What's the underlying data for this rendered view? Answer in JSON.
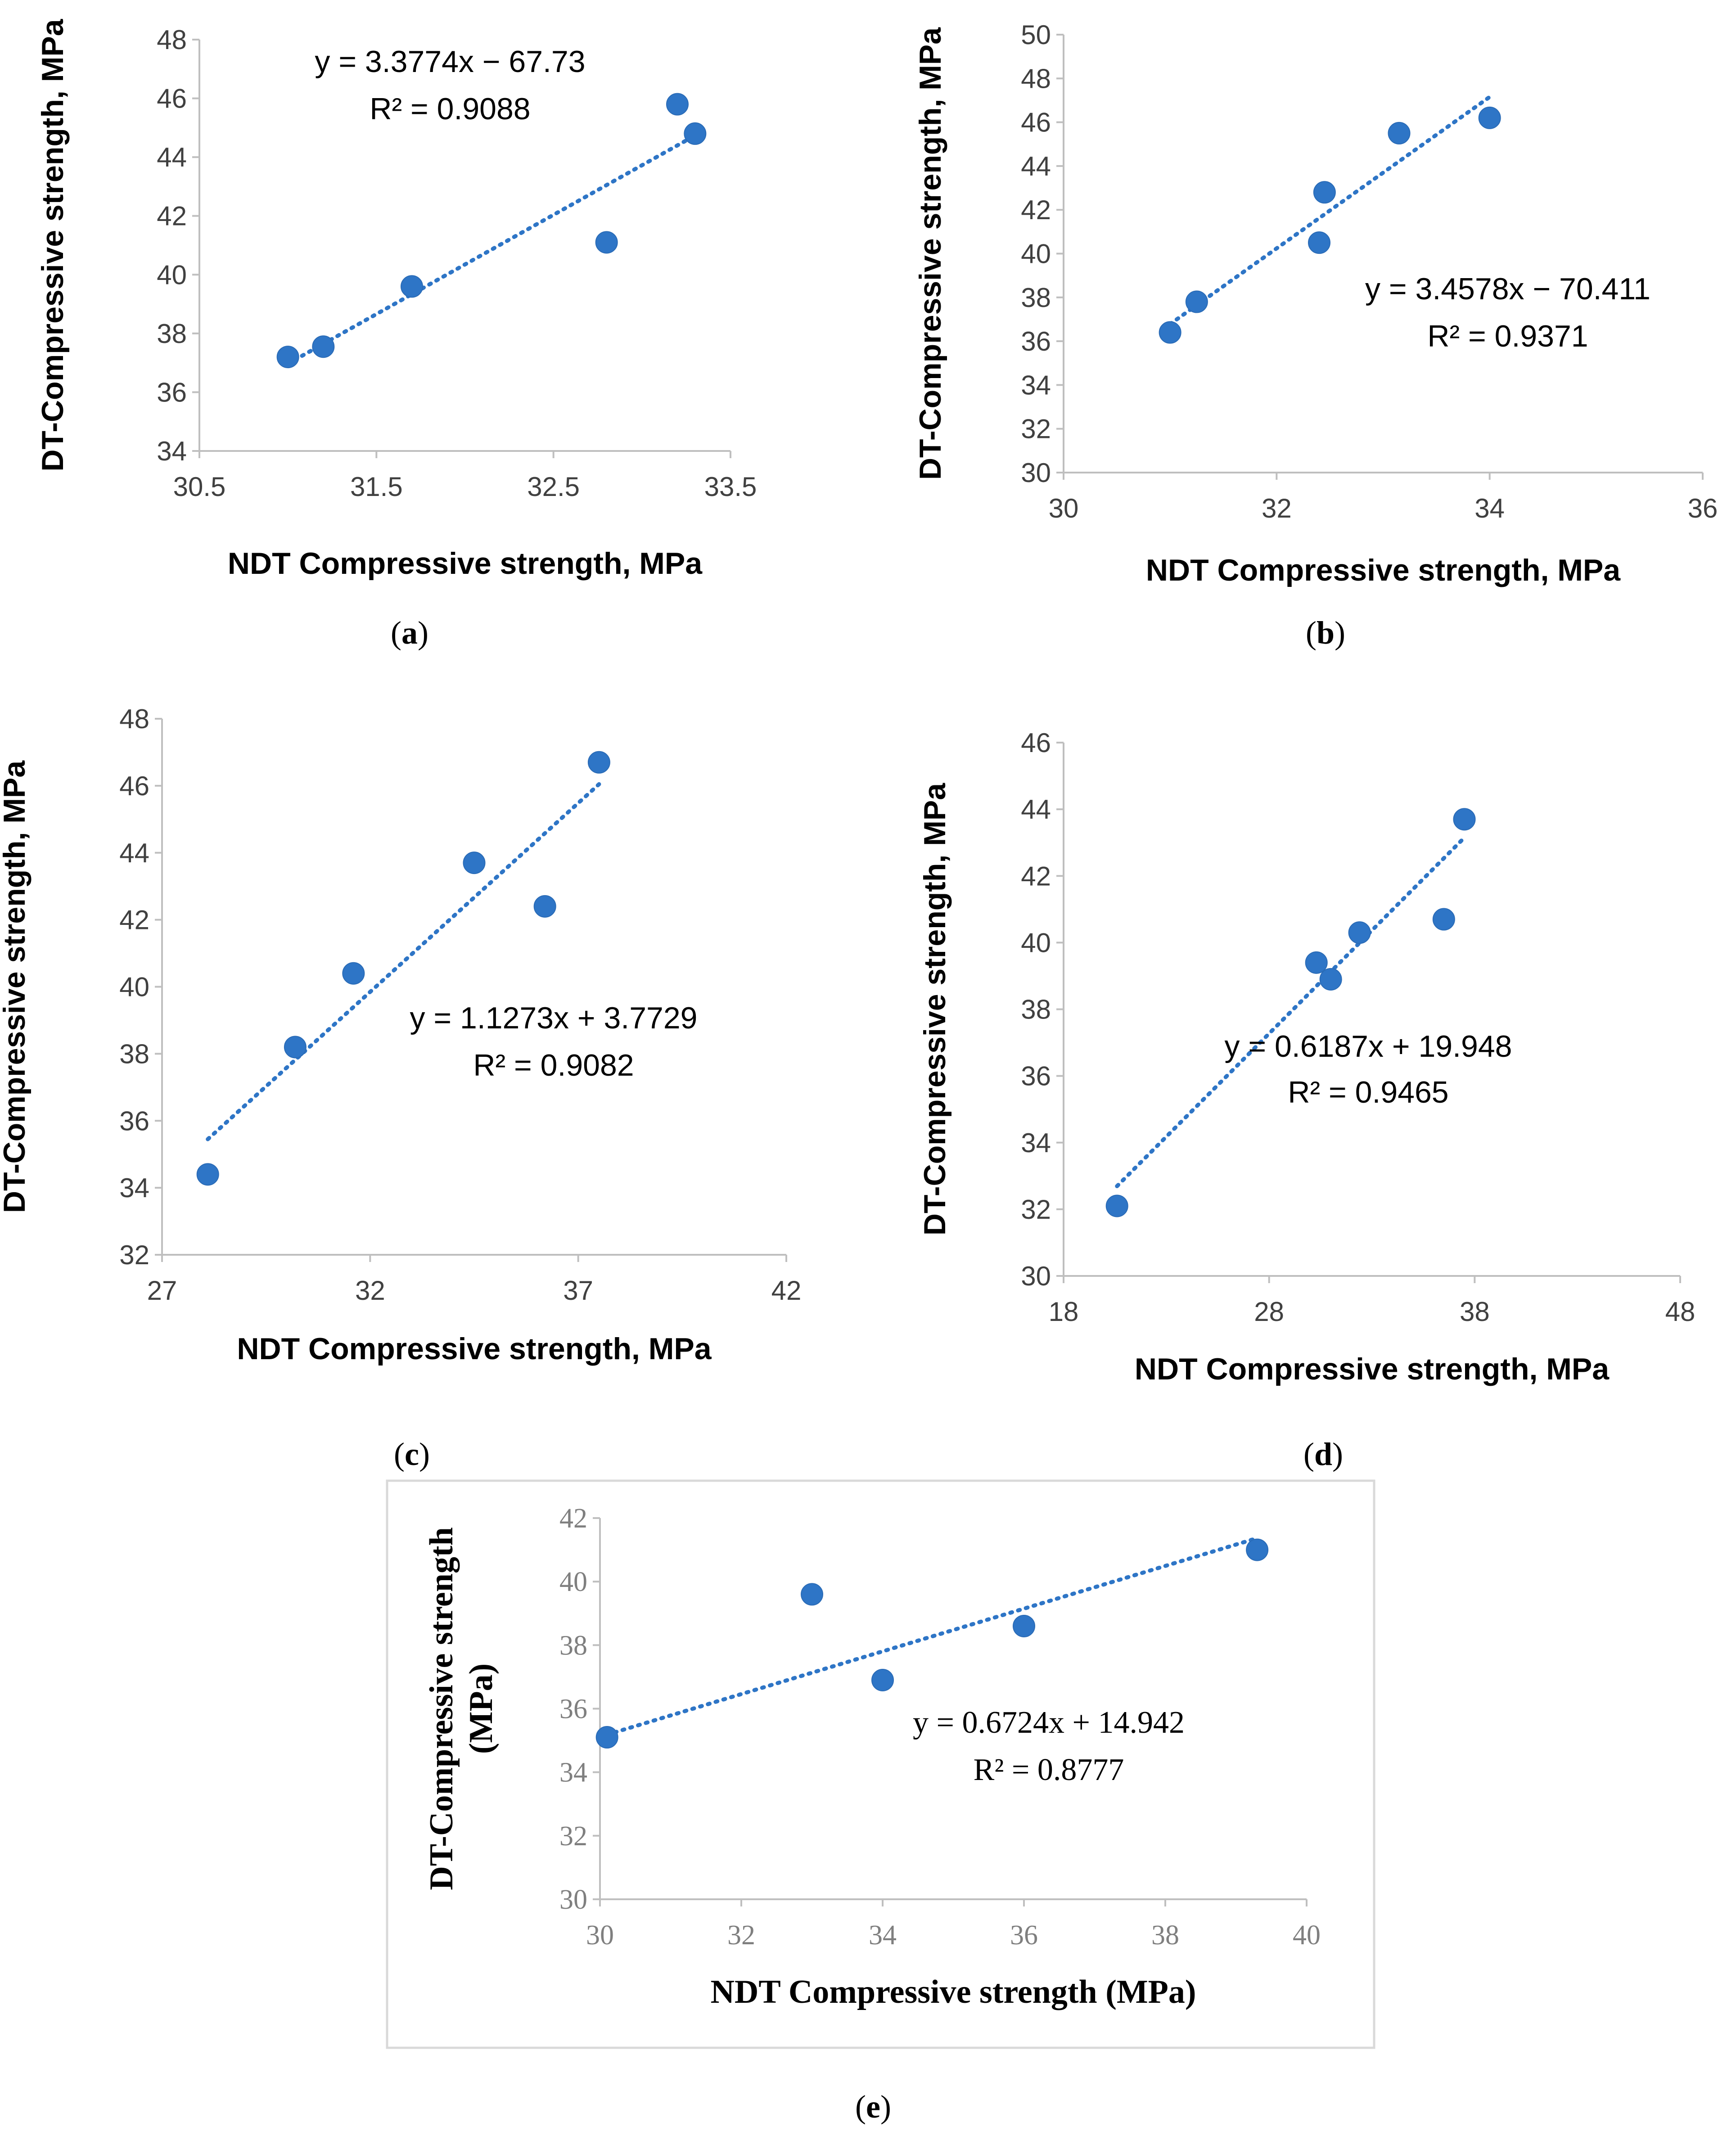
{
  "chart_data": [
    {
      "type": "scatter",
      "panel_label": "a",
      "xlabel": "NDT Compressive strength, MPa",
      "ylabel": "DT-Compressive strength, MPa",
      "xlim": [
        30.5,
        33.5
      ],
      "ylim": [
        34,
        48
      ],
      "xticks": [
        30.5,
        31.5,
        32.5,
        33.5
      ],
      "xtick_labels": [
        "30.5",
        "31.5",
        "32.5",
        "33.5"
      ],
      "yticks": [
        34,
        36,
        38,
        40,
        42,
        44,
        46,
        48
      ],
      "ytick_labels": [
        "34",
        "36",
        "38",
        "40",
        "42",
        "44",
        "46",
        "48"
      ],
      "x": [
        31.0,
        31.2,
        31.7,
        32.8,
        33.2,
        33.3
      ],
      "y": [
        37.2,
        37.55,
        39.6,
        41.1,
        45.8,
        44.8
      ],
      "trendline": {
        "slope": 3.3774,
        "intercept": -67.73,
        "x_range": [
          31.0,
          33.3
        ]
      },
      "equation": "y = 3.3774x − 67.73",
      "r_squared": "R² = 0.9088",
      "grid": false
    },
    {
      "type": "scatter",
      "panel_label": "b",
      "xlabel": "NDT Compressive strength, MPa",
      "ylabel": "DT-Compressive strength, MPa",
      "xlim": [
        30,
        36
      ],
      "ylim": [
        30,
        50
      ],
      "xticks": [
        30,
        32,
        34,
        36
      ],
      "xtick_labels": [
        "30",
        "32",
        "34",
        "36"
      ],
      "yticks": [
        30,
        32,
        34,
        36,
        38,
        40,
        42,
        44,
        46,
        48,
        50
      ],
      "ytick_labels": [
        "30",
        "32",
        "34",
        "36",
        "38",
        "40",
        "42",
        "44",
        "46",
        "48",
        "50"
      ],
      "x": [
        31.0,
        31.25,
        32.4,
        32.45,
        33.15,
        34.0
      ],
      "y": [
        36.4,
        37.8,
        40.5,
        42.8,
        45.5,
        46.2
      ],
      "trendline": {
        "slope": 3.4578,
        "intercept": -70.411,
        "x_range": [
          31.0,
          34.0
        ]
      },
      "equation": "y = 3.4578x − 70.411",
      "r_squared": "R² = 0.9371",
      "grid": false
    },
    {
      "type": "scatter",
      "panel_label": "c",
      "xlabel": "NDT Compressive strength, MPa",
      "ylabel": "DT-Compressive strength, MPa",
      "xlim": [
        27,
        42
      ],
      "ylim": [
        32,
        48
      ],
      "xticks": [
        27,
        32,
        37,
        42
      ],
      "xtick_labels": [
        "27",
        "32",
        "37",
        "42"
      ],
      "yticks": [
        32,
        34,
        36,
        38,
        40,
        42,
        44,
        46,
        48
      ],
      "ytick_labels": [
        "32",
        "34",
        "36",
        "38",
        "40",
        "42",
        "44",
        "46",
        "48"
      ],
      "x": [
        28.1,
        30.2,
        31.6,
        34.5,
        36.2,
        37.5
      ],
      "y": [
        34.4,
        38.2,
        40.4,
        43.7,
        42.4,
        46.7
      ],
      "trendline": {
        "slope": 1.1273,
        "intercept": 3.7729,
        "x_range": [
          28.1,
          37.5
        ]
      },
      "equation": "y = 1.1273x + 3.7729",
      "r_squared": "R² = 0.9082",
      "grid": false
    },
    {
      "type": "scatter",
      "panel_label": "d",
      "xlabel": "NDT Compressive strength, MPa",
      "ylabel": "DT-Compressive strength, MPa",
      "xlim": [
        18,
        48
      ],
      "ylim": [
        30,
        46
      ],
      "xticks": [
        18,
        28,
        38,
        48
      ],
      "xtick_labels": [
        "18",
        "28",
        "38",
        "48"
      ],
      "yticks": [
        30,
        32,
        34,
        36,
        38,
        40,
        42,
        44,
        46
      ],
      "ytick_labels": [
        "30",
        "32",
        "34",
        "36",
        "38",
        "40",
        "42",
        "44",
        "46"
      ],
      "x": [
        20.6,
        30.3,
        31.0,
        32.4,
        36.5,
        37.5
      ],
      "y": [
        32.1,
        39.4,
        38.9,
        40.3,
        40.7,
        43.7
      ],
      "trendline": {
        "slope": 0.6187,
        "intercept": 19.948,
        "x_range": [
          20.6,
          37.5
        ]
      },
      "equation": "y = 0.6187x + 19.948",
      "r_squared": "R² = 0.9465",
      "grid": false
    },
    {
      "type": "scatter",
      "panel_label": "e",
      "xlabel": "NDT Compressive strength (MPa)",
      "ylabel": "DT-Compressive strength (MPa)",
      "ylabel_lines": [
        "DT-Compressive strength",
        "(MPa)"
      ],
      "xlim": [
        30,
        40
      ],
      "ylim": [
        30,
        42
      ],
      "xticks": [
        30,
        32,
        34,
        36,
        38,
        40
      ],
      "xtick_labels": [
        "30",
        "32",
        "34",
        "36",
        "38",
        "40"
      ],
      "yticks": [
        30,
        32,
        34,
        36,
        38,
        40,
        42
      ],
      "ytick_labels": [
        "30",
        "32",
        "34",
        "36",
        "38",
        "40",
        "42"
      ],
      "x": [
        30.1,
        33.0,
        34.0,
        36.0,
        39.3
      ],
      "y": [
        35.1,
        39.6,
        36.9,
        38.6,
        41.0
      ],
      "trendline": {
        "slope": 0.6724,
        "intercept": 14.942,
        "x_range": [
          30.1,
          39.3
        ]
      },
      "equation": "y = 0.6724x + 14.942",
      "r_squared": "R² = 0.8777",
      "grid": false
    }
  ]
}
